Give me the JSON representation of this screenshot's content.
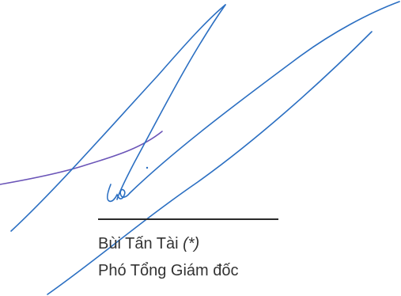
{
  "signature": {
    "ink_color": "#2b6fc2",
    "accent_ink_color": "#6b55b8"
  },
  "signer": {
    "name": "Bùi Tấn Tài",
    "note": "(*)",
    "title": "Phó Tổng Giám đốc"
  }
}
